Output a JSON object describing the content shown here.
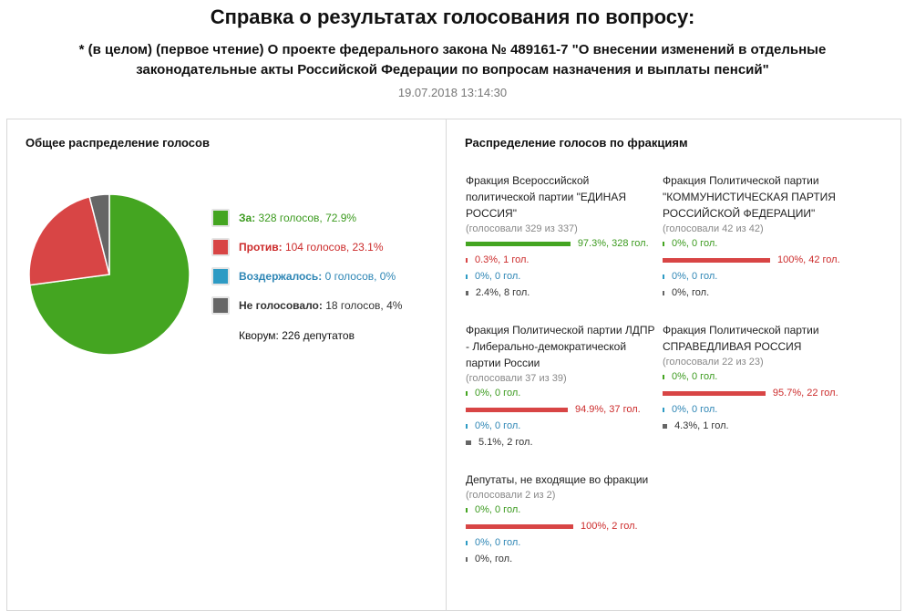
{
  "header": {
    "title": "Справка о результатах голосования по вопросу:",
    "subtitle_line1": "* (в целом) (первое чтение) О проекте федерального закона № 489161-7 \"О внесении изменений в отдельные",
    "subtitle_line2": "законодательные акты Российской Федерации по вопросам назначения и выплаты пенсий\"",
    "date": "19.07.2018 13:14:30"
  },
  "overall": {
    "title": "Общее распределение голосов",
    "legend": [
      {
        "label": "За:",
        "text": " 328 голосов, 72.9%",
        "color": "#44a521",
        "label_color": "#3b9a1e",
        "text_color": "#3b9a1e"
      },
      {
        "label": "Против:",
        "text": " 104 голосов, 23.1%",
        "color": "#d84545",
        "label_color": "#cc2b2b",
        "text_color": "#cc2b2b"
      },
      {
        "label": "Воздержалось:",
        "text": " 0 голосов, 0%",
        "color": "#2e9bc4",
        "label_color": "#2e86b5",
        "text_color": "#2e86b5"
      },
      {
        "label": "Не голосовало:",
        "text": " 18 голосов, 4%",
        "color": "#666666",
        "label_color": "#333333",
        "text_color": "#333333"
      }
    ],
    "quorum": "Кворум: 226 депутатов"
  },
  "chart_data": {
    "type": "pie",
    "categories": [
      "За",
      "Против",
      "Воздержалось",
      "Не голосовало"
    ],
    "values": [
      72.9,
      23.1,
      0,
      4
    ],
    "colors": [
      "#44a521",
      "#d84545",
      "#2e9bc4",
      "#666666"
    ]
  },
  "factions_panel": {
    "title": "Распределение голосов по фракциям",
    "factions": [
      {
        "name": "Фракция Всероссийской политической партии \"ЕДИНАЯ РОССИЯ\"",
        "voted": "(голосовали 329 из 337)",
        "rows": [
          {
            "type": "for",
            "pct": 97.3,
            "text": "97.3%, 328 гол."
          },
          {
            "type": "against",
            "pct": 0.3,
            "text": "0.3%, 1 гол."
          },
          {
            "type": "abs",
            "pct": 0,
            "text": "0%, 0 гол."
          },
          {
            "type": "nv",
            "pct": 2.4,
            "text": "2.4%, 8 гол."
          }
        ]
      },
      {
        "name": "Фракция Политической партии \"КОММУНИСТИЧЕСКАЯ ПАРТИЯ РОССИЙСКОЙ ФЕДЕРАЦИИ\"",
        "voted": "(голосовали 42 из 42)",
        "rows": [
          {
            "type": "for",
            "pct": 0,
            "text": "0%, 0 гол."
          },
          {
            "type": "against",
            "pct": 100,
            "text": "100%, 42 гол."
          },
          {
            "type": "abs",
            "pct": 0,
            "text": "0%, 0 гол."
          },
          {
            "type": "nv",
            "pct": 0,
            "text": "0%, гол."
          }
        ]
      },
      {
        "name": "Фракция Политической партии ЛДПР - Либерально-демократической партии России",
        "voted": "(голосовали 37 из 39)",
        "rows": [
          {
            "type": "for",
            "pct": 0,
            "text": "0%, 0 гол."
          },
          {
            "type": "against",
            "pct": 94.9,
            "text": "94.9%, 37 гол."
          },
          {
            "type": "abs",
            "pct": 0,
            "text": "0%, 0 гол."
          },
          {
            "type": "nv",
            "pct": 5.1,
            "text": "5.1%, 2 гол."
          }
        ]
      },
      {
        "name": "Фракция Политической партии СПРАВЕДЛИВАЯ РОССИЯ",
        "voted": "(голосовали 22 из 23)",
        "rows": [
          {
            "type": "for",
            "pct": 0,
            "text": "0%, 0 гол."
          },
          {
            "type": "against",
            "pct": 95.7,
            "text": "95.7%, 22 гол."
          },
          {
            "type": "abs",
            "pct": 0,
            "text": "0%, 0 гол."
          },
          {
            "type": "nv",
            "pct": 4.3,
            "text": "4.3%, 1 гол."
          }
        ]
      },
      {
        "name": "Депутаты, не входящие во фракции",
        "voted": "(голосовали 2 из 2)",
        "rows": [
          {
            "type": "for",
            "pct": 0,
            "text": "0%, 0 гол."
          },
          {
            "type": "against",
            "pct": 100,
            "text": "100%, 2 гол."
          },
          {
            "type": "abs",
            "pct": 0,
            "text": "0%, 0 гол."
          },
          {
            "type": "nv",
            "pct": 0,
            "text": "0%, гол."
          }
        ]
      }
    ]
  }
}
